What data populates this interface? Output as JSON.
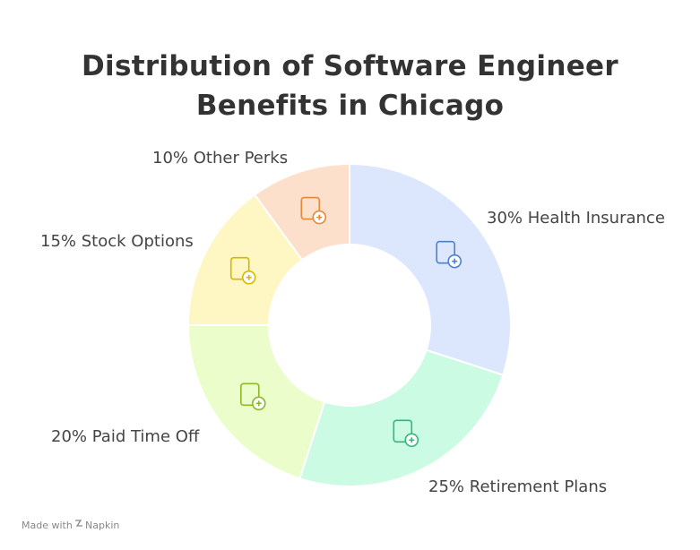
{
  "chart_data": {
    "type": "donut",
    "title": "Distribution of Software Engineer Benefits in Chicago",
    "categories": [
      "Health Insurance",
      "Retirement Plans",
      "Paid Time Off",
      "Stock Options",
      "Other Perks"
    ],
    "values": [
      30,
      25,
      20,
      15,
      10
    ],
    "value_labels": [
      "30%",
      "25%",
      "20%",
      "15%",
      "10%"
    ],
    "colors": [
      "#dce7fd",
      "#cbfbe3",
      "#ebfdcb",
      "#fef6c3",
      "#fde0cc"
    ]
  },
  "footer": {
    "text": "Made with",
    "brand": "Napkin"
  }
}
